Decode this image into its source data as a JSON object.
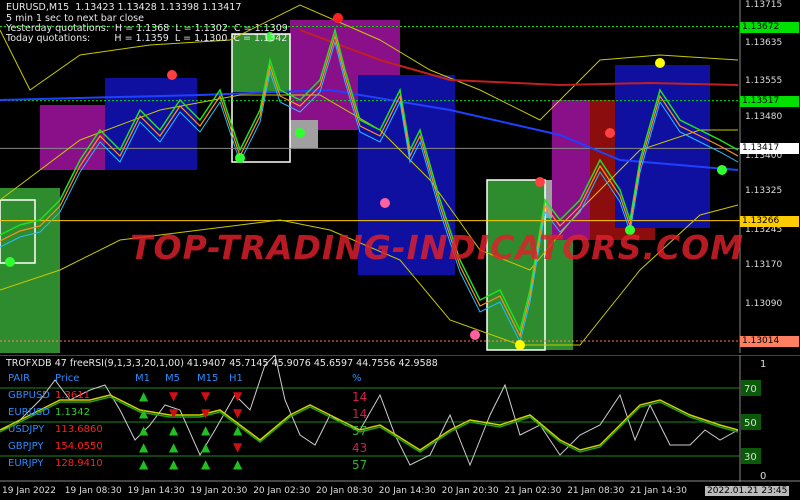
{
  "header": {
    "symbol_line": "EURUSD,M15  1.13423 1.13428 1.13398 1.13417",
    "timer": "5 min 1 sec to next bar close",
    "yesterday": "Yesterday quotations:  H = 1.1368  L = 1.1302  C = 1.1309",
    "today": "Today quotations:        H = 1.1359  L = 1.1300  C = 1.1342"
  },
  "watermark": "TOP-TRADING-INDICATORS.COM",
  "chart_data": {
    "type": "candlestick",
    "symbol": "EURUSD",
    "timeframe": "M15",
    "ylim": [
      1.12995,
      1.13725
    ],
    "y_ticks": [
      "1.13715",
      "1.13635",
      "1.13555",
      "1.13480",
      "1.13400",
      "1.13325",
      "1.13245",
      "1.13170",
      "1.13090"
    ],
    "x_ticks": [
      "19 Jan 2022",
      "19 Jan 08:30",
      "19 Jan 14:30",
      "19 Jan 20:30",
      "20 Jan 02:30",
      "20 Jan 08:30",
      "20 Jan 14:30",
      "20 Jan 20:30",
      "21 Jan 02:30",
      "21 Jan 08:30",
      "21 Jan 14:30"
    ],
    "cursor_time": "2022.01.21 23:45",
    "price_levels": [
      {
        "value": "1.13672",
        "color": "#00e000"
      },
      {
        "value": "1.13517",
        "color": "#00e000"
      },
      {
        "value": "1.13417",
        "color": "#ffffff"
      },
      {
        "value": "1.13266",
        "color": "#ffcc00"
      },
      {
        "value": "1.13014",
        "color": "#ff8060"
      }
    ],
    "grid": false
  },
  "oscillator": {
    "title": "TROFXDB 47  freeRSI(9,1,3,3,20,1,00) 41.9407 45.7145 45.9076 45.6597 44.7556 42.9588",
    "levels": [
      "70",
      "50",
      "30"
    ],
    "scale": [
      "1",
      "0"
    ]
  },
  "table": {
    "headers": [
      "PAIR",
      "Price",
      "M1",
      "M5",
      "M15",
      "H1",
      "%"
    ],
    "rows": [
      {
        "pair": "GBPUSD",
        "price": "1.3611",
        "price_color": "#ff2020",
        "arrows": [
          "up",
          "down",
          "down",
          "down"
        ],
        "pct": "14",
        "pct_color": "#d0204a"
      },
      {
        "pair": "EURUSD",
        "price": "1.1342",
        "price_color": "#30d030",
        "arrows": [
          "up",
          "down",
          "down",
          "down"
        ],
        "pct": "14",
        "pct_color": "#d0204a"
      },
      {
        "pair": "USDJPY",
        "price": "113.6860",
        "price_color": "#ff2020",
        "arrows": [
          "up",
          "up",
          "up",
          "up"
        ],
        "pct": "57",
        "pct_color": "#30b030"
      },
      {
        "pair": "GBPJPY",
        "price": "154.0550",
        "price_color": "#ff2020",
        "arrows": [
          "up",
          "up",
          "up",
          "down"
        ],
        "pct": "43",
        "pct_color": "#d0204a"
      },
      {
        "pair": "EURJPY",
        "price": "128.9410",
        "price_color": "#ff2020",
        "arrows": [
          "up",
          "up",
          "up",
          "up"
        ],
        "pct": "57",
        "pct_color": "#30b030"
      }
    ]
  }
}
